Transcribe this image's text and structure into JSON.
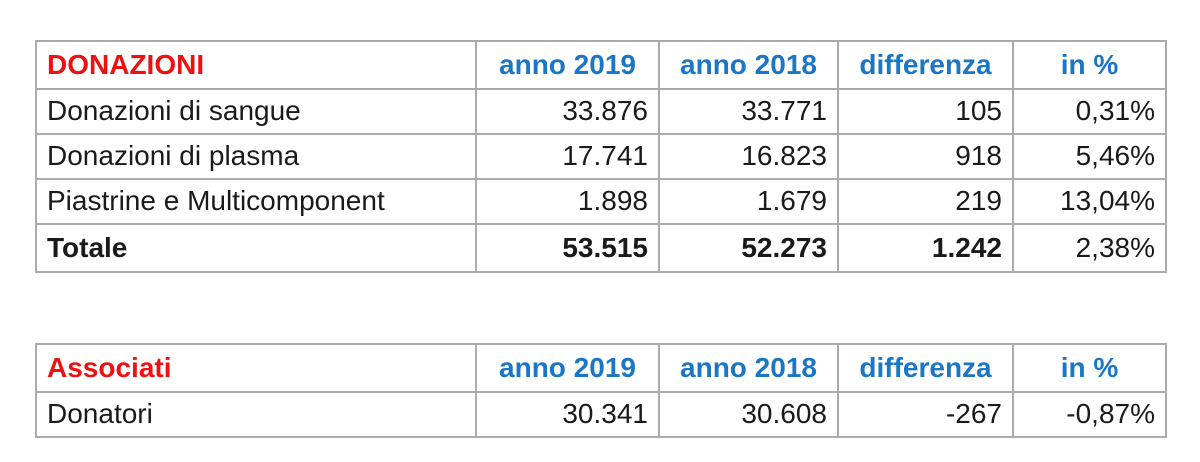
{
  "colors": {
    "title_red": "#ee1111",
    "header_blue": "#1b76c5",
    "border_gray": "#ababab",
    "text": "#1a1a1a",
    "background": "#ffffff"
  },
  "tables": [
    {
      "title": "DONAZIONI",
      "columns": [
        "anno 2019",
        "anno 2018",
        "differenza",
        "in %"
      ],
      "rows": [
        {
          "label": "Donazioni di sangue",
          "values": [
            "33.876",
            "33.771",
            "105",
            "0,31%"
          ]
        },
        {
          "label": "Donazioni di plasma",
          "values": [
            "17.741",
            "16.823",
            "918",
            "5,46%"
          ]
        },
        {
          "label": "Piastrine e Multicomponent",
          "values": [
            "1.898",
            "1.679",
            "219",
            "13,04%"
          ]
        },
        {
          "label": "Totale",
          "values": [
            "53.515",
            "52.273",
            "1.242",
            "2,38%"
          ]
        }
      ]
    },
    {
      "title": "Associati",
      "columns": [
        "anno 2019",
        "anno 2018",
        "differenza",
        "in %"
      ],
      "rows": [
        {
          "label": "Donatori",
          "values": [
            "30.341",
            "30.608",
            "-267",
            "-0,87%"
          ]
        }
      ]
    }
  ]
}
